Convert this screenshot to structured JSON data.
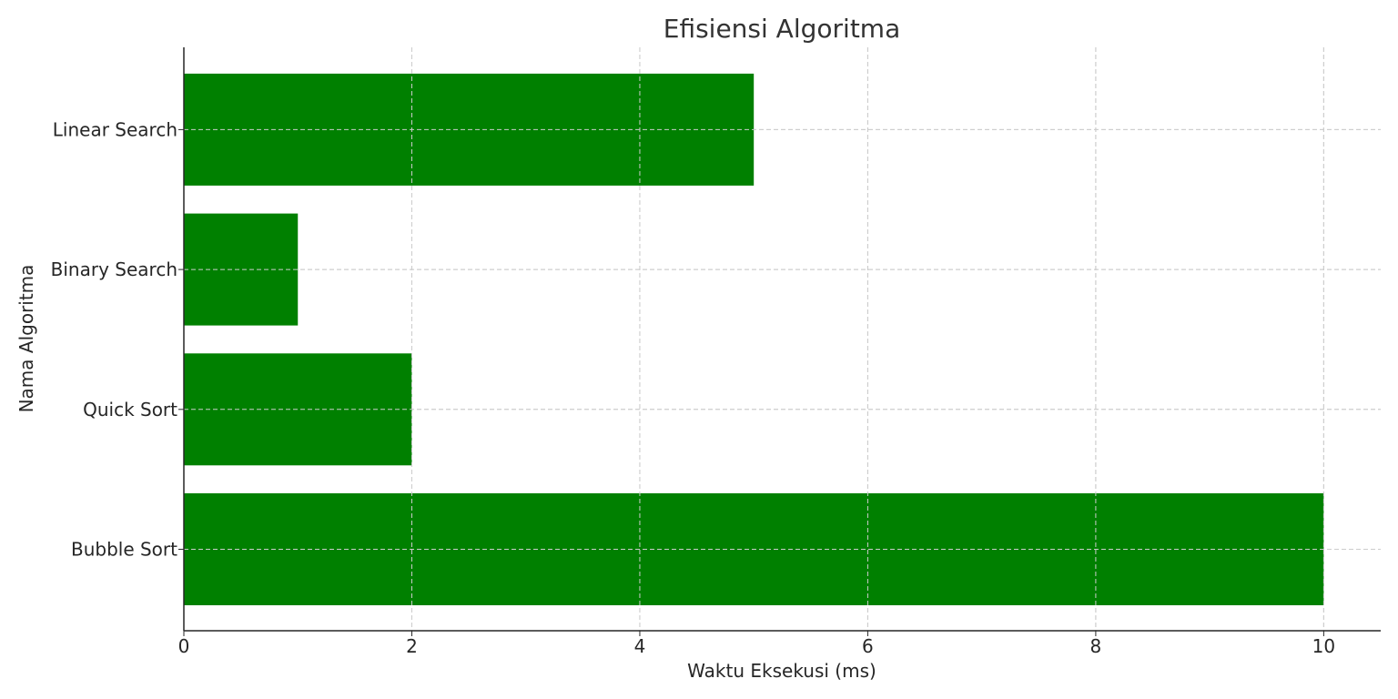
{
  "chart_data": {
    "type": "bar",
    "orientation": "horizontal",
    "title": "Efisiensi Algoritma",
    "xlabel": "Waktu Eksekusi (ms)",
    "ylabel": "Nama Algoritma",
    "categories": [
      "Bubble Sort",
      "Quick Sort",
      "Binary Search",
      "Linear Search"
    ],
    "values": [
      10,
      2,
      1,
      5
    ],
    "xlim": [
      0,
      10.5
    ],
    "xticks": [
      0,
      2,
      4,
      6,
      8,
      10
    ],
    "grid": true,
    "bar_color": "#008000",
    "grid_color": "#cccccc"
  }
}
